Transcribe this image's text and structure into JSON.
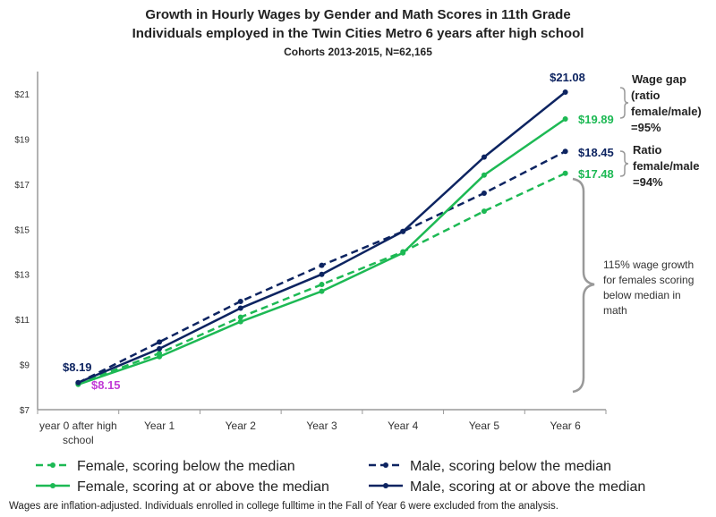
{
  "chart_data": {
    "type": "line",
    "title": "Growth in Hourly Wages by Gender and Math Scores in 11th Grade",
    "subtitle": "Individuals employed in the Twin Cities Metro 6 years after high school",
    "subtitle2": "Cohorts 2013-2015, N=62,165",
    "categories": [
      "year 0 after high school",
      "Year 1",
      "Year 2",
      "Year 3",
      "Year 4",
      "Year 5",
      "Year 6"
    ],
    "ylim": [
      7,
      22
    ],
    "yticks": [
      7,
      9,
      11,
      13,
      15,
      17,
      19,
      21
    ],
    "ytick_labels": [
      "$7",
      "$9",
      "$11",
      "$13",
      "$15",
      "$17",
      "$19",
      "$21"
    ],
    "grid": false,
    "legend_placement": "bottom",
    "series": [
      {
        "name": "Female, scoring below the median",
        "color": "#1db954",
        "dash": true,
        "values": [
          8.15,
          9.5,
          11.1,
          12.55,
          14.0,
          15.8,
          17.48
        ]
      },
      {
        "name": "Male, scoring below the median",
        "color": "#0d2461",
        "dash": true,
        "values": [
          8.19,
          10.0,
          11.8,
          13.4,
          14.9,
          16.6,
          18.45
        ]
      },
      {
        "name": "Female, scoring at or above the median",
        "color": "#1db954",
        "dash": false,
        "values": [
          8.12,
          9.35,
          10.9,
          12.25,
          13.95,
          17.4,
          19.89
        ]
      },
      {
        "name": "Male, scoring at or above the median",
        "color": "#0d2461",
        "dash": false,
        "values": [
          8.2,
          9.7,
          11.5,
          13.0,
          14.9,
          18.2,
          21.08
        ]
      }
    ],
    "data_labels": {
      "start_male": "$8.19",
      "start_female": "$8.15",
      "male_above_end": "$21.08",
      "female_above_end": "$19.89",
      "male_below_end": "$18.45",
      "female_below_end": "$17.48"
    },
    "annotations": {
      "wage_gap": [
        "Wage gap",
        "(ratio",
        "female/male)",
        "=95%"
      ],
      "ratio": [
        "Ratio",
        "female/male",
        "=94%"
      ],
      "growth": [
        "115% wage growth",
        "for females scoring",
        "below median in",
        "math"
      ]
    },
    "colors": {
      "male": "#0d2461",
      "female": "#1db954",
      "female_start_label": "#c13ad6"
    }
  },
  "footnote": "Wages are inflation-adjusted. Individuals enrolled in college fulltime in the Fall of Year 6 were excluded from the analysis."
}
